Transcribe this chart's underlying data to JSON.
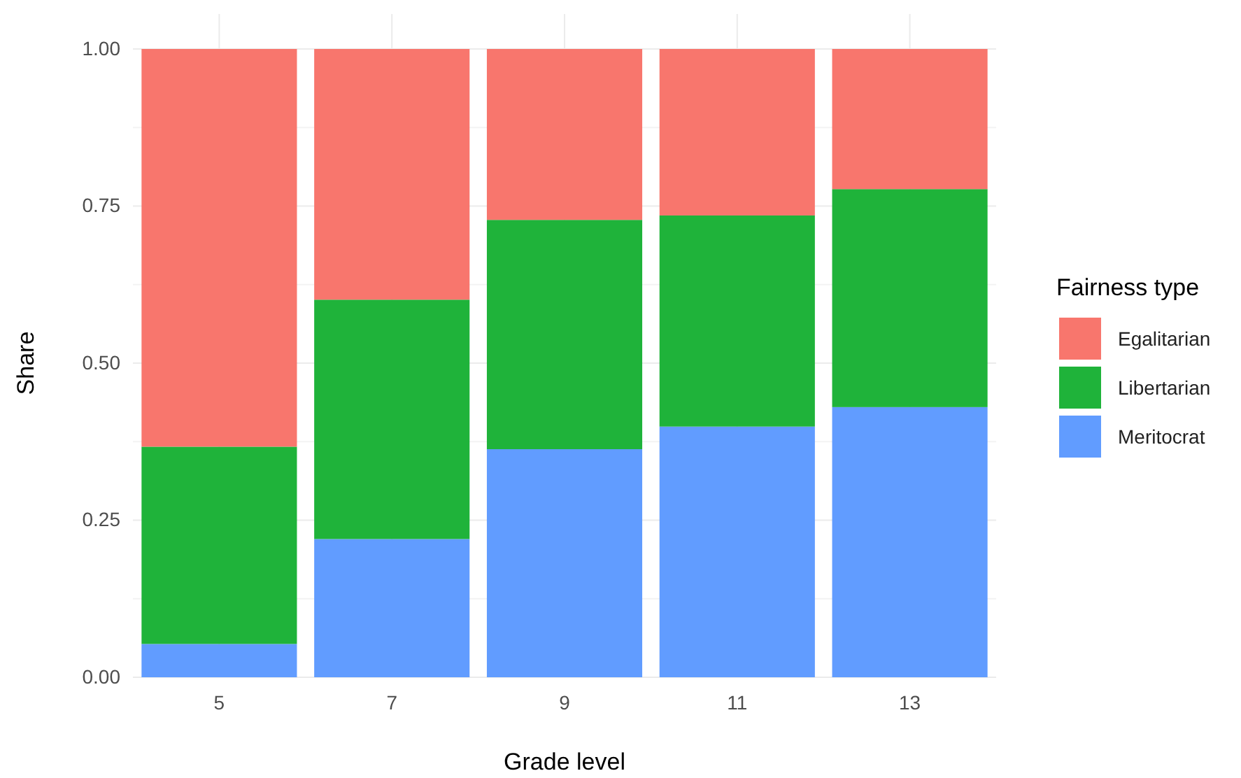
{
  "chart_data": {
    "type": "bar",
    "stacked": true,
    "xlabel": "Grade level",
    "ylabel": "Share",
    "legend_title": "Fairness type",
    "legend": "right",
    "grid": true,
    "categories": [
      "5",
      "7",
      "9",
      "11",
      "13"
    ],
    "ylim": [
      0,
      1
    ],
    "yticks": [
      {
        "value": 0,
        "label": "0.00"
      },
      {
        "value": 0.25,
        "label": "0.25"
      },
      {
        "value": 0.5,
        "label": "0.50"
      },
      {
        "value": 0.75,
        "label": "0.75"
      },
      {
        "value": 1,
        "label": "1.00"
      }
    ],
    "series": [
      {
        "name": "Meritocrat",
        "color": "#619cff",
        "values": [
          0.053,
          0.22,
          0.363,
          0.399,
          0.43
        ]
      },
      {
        "name": "Libertarian",
        "color": "#1fb33a",
        "values": [
          0.314,
          0.381,
          0.365,
          0.336,
          0.347
        ]
      },
      {
        "name": "Egalitarian",
        "color": "#f8766d",
        "values": [
          0.633,
          0.399,
          0.272,
          0.265,
          0.223
        ]
      }
    ]
  }
}
